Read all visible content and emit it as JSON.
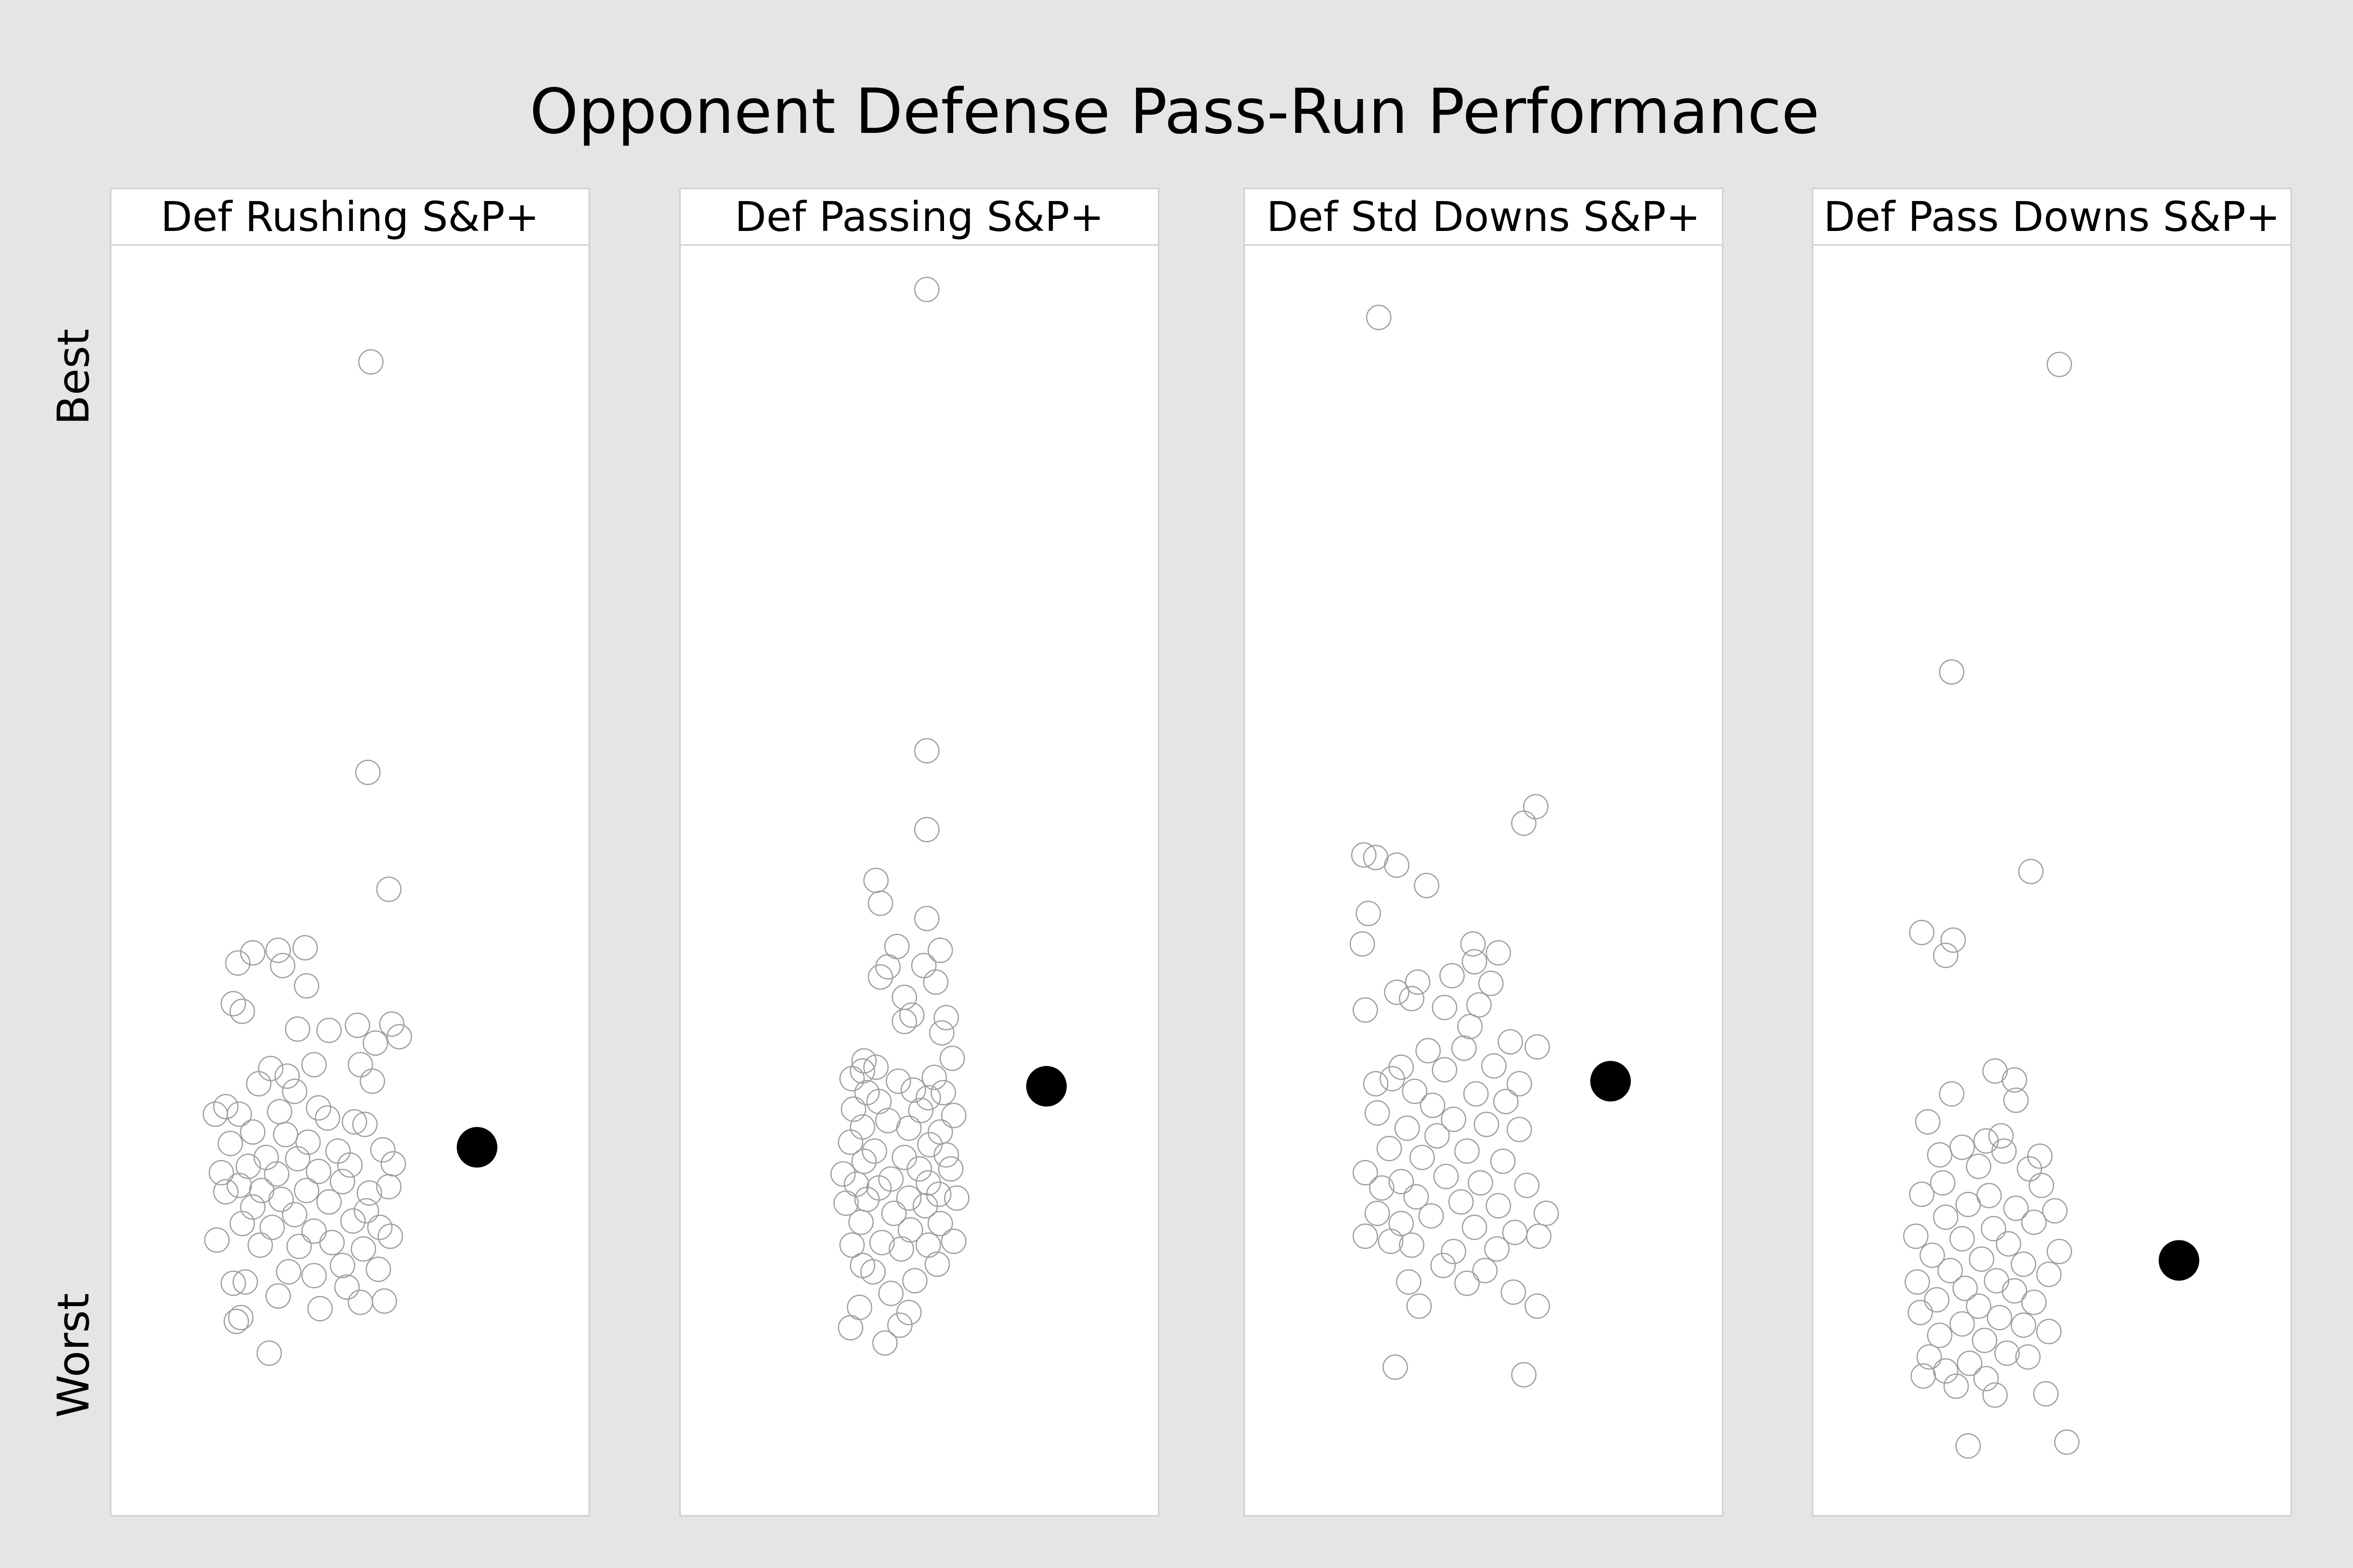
{
  "colors": {
    "background": "#e5e5e5",
    "panel": "#ffffff",
    "open_point": "#9e9e9e",
    "highlight_point": "#000000"
  },
  "chart_data": {
    "type": "scatter",
    "title": "Opponent Defense Pass-Run Performance",
    "ylabel_top": "Best",
    "ylabel_bottom": "Worst",
    "ylim": [
      0,
      100
    ],
    "xlim": [
      -1.6,
      1.6
    ],
    "note": "",
    "panels": [
      {
        "name": "Def Rushing S&P+",
        "highlight": {
          "x": 0.85,
          "y": 29.0
        },
        "points": [
          [
            0.14,
            90.8
          ],
          [
            0.12,
            58.5
          ],
          [
            0.26,
            49.3
          ],
          [
            -0.65,
            44.3
          ],
          [
            -0.48,
            44.5
          ],
          [
            -0.3,
            44.7
          ],
          [
            -0.75,
            43.5
          ],
          [
            -0.45,
            43.3
          ],
          [
            -0.78,
            40.3
          ],
          [
            -0.29,
            41.7
          ],
          [
            -0.72,
            39.7
          ],
          [
            0.05,
            38.6
          ],
          [
            0.28,
            38.7
          ],
          [
            -0.35,
            38.3
          ],
          [
            -0.14,
            38.2
          ],
          [
            0.17,
            37.2
          ],
          [
            0.33,
            37.7
          ],
          [
            -0.53,
            35.2
          ],
          [
            -0.24,
            35.5
          ],
          [
            0.07,
            35.5
          ],
          [
            -0.42,
            34.6
          ],
          [
            0.15,
            34.2
          ],
          [
            -0.61,
            34.0
          ],
          [
            -0.37,
            33.4
          ],
          [
            -0.83,
            32.2
          ],
          [
            -0.74,
            31.6
          ],
          [
            -0.21,
            32.1
          ],
          [
            -0.47,
            31.8
          ],
          [
            -0.15,
            31.3
          ],
          [
            0.03,
            31.0
          ],
          [
            -0.9,
            31.6
          ],
          [
            0.1,
            30.8
          ],
          [
            -0.65,
            30.2
          ],
          [
            -0.43,
            30.0
          ],
          [
            -0.28,
            29.4
          ],
          [
            -0.8,
            29.3
          ],
          [
            0.22,
            28.8
          ],
          [
            -0.08,
            28.7
          ],
          [
            -0.56,
            28.2
          ],
          [
            -0.35,
            28.1
          ],
          [
            0.0,
            27.6
          ],
          [
            -0.68,
            27.5
          ],
          [
            -0.21,
            27.1
          ],
          [
            0.29,
            27.7
          ],
          [
            -0.86,
            27.0
          ],
          [
            -0.49,
            26.9
          ],
          [
            -0.05,
            26.3
          ],
          [
            -0.74,
            26.0
          ],
          [
            -0.59,
            25.6
          ],
          [
            0.13,
            25.4
          ],
          [
            0.26,
            25.9
          ],
          [
            -0.29,
            25.6
          ],
          [
            -0.83,
            25.5
          ],
          [
            -0.46,
            24.9
          ],
          [
            -0.65,
            24.3
          ],
          [
            -0.14,
            24.7
          ],
          [
            0.11,
            24.0
          ],
          [
            -0.37,
            23.7
          ],
          [
            -0.72,
            23.0
          ],
          [
            -0.52,
            22.7
          ],
          [
            0.02,
            23.2
          ],
          [
            -0.24,
            22.4
          ],
          [
            0.2,
            22.7
          ],
          [
            -0.89,
            21.7
          ],
          [
            -0.6,
            21.3
          ],
          [
            -0.34,
            21.2
          ],
          [
            -0.12,
            21.5
          ],
          [
            0.09,
            21.0
          ],
          [
            0.27,
            22.0
          ],
          [
            -0.05,
            19.7
          ],
          [
            -0.41,
            19.2
          ],
          [
            0.19,
            19.4
          ],
          [
            -0.7,
            18.4
          ],
          [
            -0.78,
            18.3
          ],
          [
            -0.24,
            18.9
          ],
          [
            -0.48,
            17.3
          ],
          [
            -0.02,
            18.0
          ],
          [
            0.23,
            16.9
          ],
          [
            0.07,
            16.8
          ],
          [
            -0.2,
            16.3
          ],
          [
            -0.73,
            15.6
          ],
          [
            -0.76,
            15.3
          ],
          [
            -0.54,
            12.8
          ]
        ]
      },
      {
        "name": "Def Passing S&P+",
        "highlight": {
          "x": 0.85,
          "y": 33.8
        },
        "points": [
          [
            0.05,
            96.5
          ],
          [
            0.05,
            60.2
          ],
          [
            0.05,
            54.0
          ],
          [
            -0.29,
            50.0
          ],
          [
            -0.26,
            48.2
          ],
          [
            0.05,
            47.0
          ],
          [
            -0.15,
            44.8
          ],
          [
            0.14,
            44.5
          ],
          [
            -0.21,
            43.2
          ],
          [
            0.03,
            43.3
          ],
          [
            -0.26,
            42.4
          ],
          [
            0.11,
            42.0
          ],
          [
            -0.1,
            40.8
          ],
          [
            -0.05,
            39.4
          ],
          [
            0.18,
            39.2
          ],
          [
            -0.1,
            38.9
          ],
          [
            0.15,
            38.0
          ],
          [
            -0.37,
            35.8
          ],
          [
            0.22,
            36.0
          ],
          [
            -0.38,
            35.0
          ],
          [
            -0.29,
            35.3
          ],
          [
            -0.45,
            34.4
          ],
          [
            -0.14,
            34.2
          ],
          [
            0.1,
            34.5
          ],
          [
            -0.35,
            33.3
          ],
          [
            0.06,
            32.9
          ],
          [
            -0.04,
            33.5
          ],
          [
            0.16,
            33.3
          ],
          [
            -0.27,
            32.6
          ],
          [
            -0.44,
            32.0
          ],
          [
            0.01,
            31.9
          ],
          [
            -0.21,
            31.1
          ],
          [
            0.23,
            31.5
          ],
          [
            -0.38,
            30.6
          ],
          [
            0.14,
            30.2
          ],
          [
            -0.07,
            30.5
          ],
          [
            -0.46,
            29.4
          ],
          [
            0.07,
            29.2
          ],
          [
            -0.3,
            28.7
          ],
          [
            -0.1,
            28.2
          ],
          [
            0.18,
            28.4
          ],
          [
            -0.37,
            27.9
          ],
          [
            0.0,
            27.3
          ],
          [
            0.21,
            27.3
          ],
          [
            -0.51,
            26.9
          ],
          [
            -0.19,
            26.5
          ],
          [
            0.06,
            26.2
          ],
          [
            -0.42,
            26.1
          ],
          [
            -0.27,
            25.8
          ],
          [
            0.13,
            25.3
          ],
          [
            -0.07,
            25.0
          ],
          [
            -0.35,
            24.9
          ],
          [
            0.25,
            25.0
          ],
          [
            -0.49,
            24.6
          ],
          [
            0.04,
            24.4
          ],
          [
            -0.17,
            23.8
          ],
          [
            -0.39,
            23.1
          ],
          [
            0.14,
            23.0
          ],
          [
            -0.06,
            22.5
          ],
          [
            -0.45,
            21.3
          ],
          [
            -0.25,
            21.5
          ],
          [
            0.23,
            21.6
          ],
          [
            -0.12,
            21.0
          ],
          [
            0.06,
            21.3
          ],
          [
            -0.38,
            19.7
          ],
          [
            0.12,
            19.8
          ],
          [
            -0.31,
            19.2
          ],
          [
            -0.03,
            18.5
          ],
          [
            -0.19,
            17.5
          ],
          [
            -0.4,
            16.4
          ],
          [
            -0.07,
            16.0
          ],
          [
            -0.46,
            14.8
          ],
          [
            -0.13,
            15.0
          ],
          [
            -0.23,
            13.6
          ]
        ]
      },
      {
        "name": "Def Std Downs S&P+",
        "highlight": {
          "x": 0.85,
          "y": 34.2
        },
        "points": [
          [
            -0.7,
            94.3
          ],
          [
            0.35,
            55.8
          ],
          [
            0.27,
            54.5
          ],
          [
            -0.8,
            52.0
          ],
          [
            -0.72,
            51.8
          ],
          [
            -0.58,
            51.2
          ],
          [
            -0.38,
            49.6
          ],
          [
            -0.77,
            47.4
          ],
          [
            -0.81,
            45.0
          ],
          [
            -0.07,
            45.0
          ],
          [
            -0.06,
            43.6
          ],
          [
            0.1,
            44.3
          ],
          [
            -0.21,
            42.5
          ],
          [
            0.05,
            41.9
          ],
          [
            -0.44,
            42.0
          ],
          [
            -0.58,
            41.2
          ],
          [
            -0.48,
            40.7
          ],
          [
            -0.03,
            40.2
          ],
          [
            -0.79,
            39.8
          ],
          [
            -0.26,
            40.0
          ],
          [
            -0.09,
            38.5
          ],
          [
            0.18,
            37.3
          ],
          [
            0.36,
            36.9
          ],
          [
            -0.37,
            36.6
          ],
          [
            -0.13,
            36.8
          ],
          [
            -0.55,
            35.3
          ],
          [
            0.07,
            35.4
          ],
          [
            -0.26,
            35.1
          ],
          [
            0.24,
            34.0
          ],
          [
            -0.72,
            34.0
          ],
          [
            -0.61,
            34.4
          ],
          [
            -0.46,
            33.4
          ],
          [
            -0.05,
            33.2
          ],
          [
            -0.34,
            32.3
          ],
          [
            0.15,
            32.6
          ],
          [
            -0.71,
            31.7
          ],
          [
            -0.2,
            31.2
          ],
          [
            0.02,
            30.8
          ],
          [
            -0.51,
            30.5
          ],
          [
            -0.31,
            29.9
          ],
          [
            0.24,
            30.4
          ],
          [
            -0.63,
            28.9
          ],
          [
            -0.11,
            28.7
          ],
          [
            -0.41,
            28.2
          ],
          [
            0.13,
            27.9
          ],
          [
            -0.79,
            27.0
          ],
          [
            -0.55,
            26.3
          ],
          [
            -0.25,
            26.7
          ],
          [
            -0.02,
            26.2
          ],
          [
            0.29,
            26.0
          ],
          [
            -0.68,
            25.8
          ],
          [
            -0.45,
            25.1
          ],
          [
            -0.15,
            24.7
          ],
          [
            0.1,
            24.4
          ],
          [
            -0.71,
            23.8
          ],
          [
            -0.35,
            23.6
          ],
          [
            0.42,
            23.8
          ],
          [
            -0.55,
            23.0
          ],
          [
            -0.06,
            22.7
          ],
          [
            0.21,
            22.3
          ],
          [
            -0.79,
            22.0
          ],
          [
            -0.48,
            21.3
          ],
          [
            -0.2,
            20.8
          ],
          [
            0.37,
            22.0
          ],
          [
            -0.62,
            21.6
          ],
          [
            0.09,
            21.0
          ],
          [
            -0.27,
            19.7
          ],
          [
            0.01,
            19.3
          ],
          [
            -0.5,
            18.4
          ],
          [
            -0.11,
            18.3
          ],
          [
            0.2,
            17.6
          ],
          [
            -0.43,
            16.5
          ],
          [
            0.36,
            16.5
          ],
          [
            -0.59,
            11.7
          ],
          [
            0.27,
            11.1
          ]
        ]
      },
      {
        "name": "Def Pass Downs S&P+",
        "highlight": {
          "x": 0.85,
          "y": 20.1
        },
        "points": [
          [
            0.05,
            90.6
          ],
          [
            -0.67,
            66.4
          ],
          [
            -0.14,
            50.7
          ],
          [
            -0.87,
            45.9
          ],
          [
            -0.66,
            45.3
          ],
          [
            -0.71,
            44.1
          ],
          [
            -0.38,
            35.0
          ],
          [
            -0.25,
            34.3
          ],
          [
            -0.67,
            33.2
          ],
          [
            -0.24,
            32.7
          ],
          [
            -0.34,
            29.9
          ],
          [
            -0.83,
            31.0
          ],
          [
            -0.44,
            29.5
          ],
          [
            -0.6,
            29.0
          ],
          [
            -0.08,
            28.3
          ],
          [
            -0.75,
            28.4
          ],
          [
            -0.32,
            28.7
          ],
          [
            -0.49,
            27.5
          ],
          [
            -0.15,
            27.3
          ],
          [
            -0.73,
            26.2
          ],
          [
            -0.07,
            26.0
          ],
          [
            -0.42,
            25.2
          ],
          [
            -0.87,
            25.3
          ],
          [
            -0.56,
            24.5
          ],
          [
            -0.24,
            24.2
          ],
          [
            0.02,
            24.0
          ],
          [
            -0.71,
            23.5
          ],
          [
            -0.39,
            22.6
          ],
          [
            -0.12,
            23.1
          ],
          [
            -0.91,
            22.0
          ],
          [
            -0.6,
            21.8
          ],
          [
            -0.29,
            21.4
          ],
          [
            0.05,
            20.8
          ],
          [
            -0.8,
            20.5
          ],
          [
            -0.47,
            20.2
          ],
          [
            -0.19,
            19.8
          ],
          [
            -0.68,
            19.3
          ],
          [
            -0.02,
            19.0
          ],
          [
            -0.9,
            18.4
          ],
          [
            -0.37,
            18.5
          ],
          [
            -0.58,
            17.9
          ],
          [
            -0.25,
            17.7
          ],
          [
            -0.77,
            17.0
          ],
          [
            -0.12,
            16.8
          ],
          [
            -0.49,
            16.5
          ],
          [
            -0.88,
            16.0
          ],
          [
            -0.35,
            15.6
          ],
          [
            -0.6,
            15.1
          ],
          [
            -0.19,
            15.0
          ],
          [
            -0.75,
            14.2
          ],
          [
            -0.02,
            14.5
          ],
          [
            -0.45,
            13.8
          ],
          [
            -0.3,
            12.8
          ],
          [
            -0.82,
            12.5
          ],
          [
            -0.55,
            12.0
          ],
          [
            -0.71,
            11.4
          ],
          [
            -0.16,
            12.5
          ],
          [
            -0.86,
            11.0
          ],
          [
            -0.44,
            10.8
          ],
          [
            -0.64,
            10.2
          ],
          [
            -0.38,
            9.5
          ],
          [
            -0.04,
            9.6
          ],
          [
            -0.56,
            5.5
          ],
          [
            0.1,
            5.8
          ]
        ]
      }
    ]
  }
}
